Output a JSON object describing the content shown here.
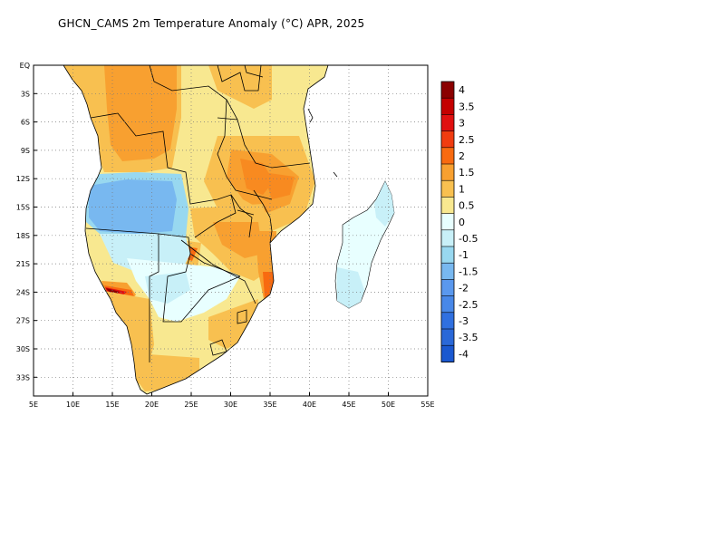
{
  "title": "GHCN_CAMS 2m Temperature Anomaly (°C) APR, 2025",
  "map": {
    "lon_range": [
      5,
      55
    ],
    "lat_range": [
      0,
      -35
    ],
    "x_ticks": [
      "5E",
      "10E",
      "15E",
      "20E",
      "25E",
      "30E",
      "35E",
      "40E",
      "45E",
      "50E",
      "55E"
    ],
    "y_ticks": [
      "EQ",
      "3S",
      "6S",
      "9S",
      "12S",
      "15S",
      "18S",
      "21S",
      "24S",
      "27S",
      "30S",
      "33S"
    ],
    "grid": "dotted"
  },
  "colorbar": {
    "labels": [
      "4",
      "3.5",
      "3",
      "2.5",
      "2",
      "1.5",
      "1",
      "0.5",
      "0",
      "-0.5",
      "-1",
      "-1.5",
      "-2",
      "-2.5",
      "-3",
      "-3.5",
      "-4"
    ],
    "colors": [
      "#8b0000",
      "#c40000",
      "#e01010",
      "#f03c10",
      "#f86a10",
      "#f8a030",
      "#f8c050",
      "#f8e890",
      "#e8ffff",
      "#c8f0f8",
      "#98d8f0",
      "#78b8f0",
      "#5a98ee",
      "#4888e8",
      "#3070e0",
      "#2a68d8",
      "#1a58d0"
    ]
  },
  "land_colors": {
    "anom_0_0.5": "#f8e890",
    "anom_0.5_1": "#f8c050",
    "anom_1_1.5": "#f8a030",
    "anom_1.5_2": "#f88a20",
    "anom_2_2.5": "#f86a10",
    "anom_3_4": "#e01010",
    "anom_gt_4": "#8b0000",
    "anom_0_-0.5": "#e8ffff",
    "anom_-0.5_-1": "#c8f0f8",
    "anom_-1_-1.5": "#98d8f0",
    "anom_-1.5_-2": "#78b8f0"
  }
}
